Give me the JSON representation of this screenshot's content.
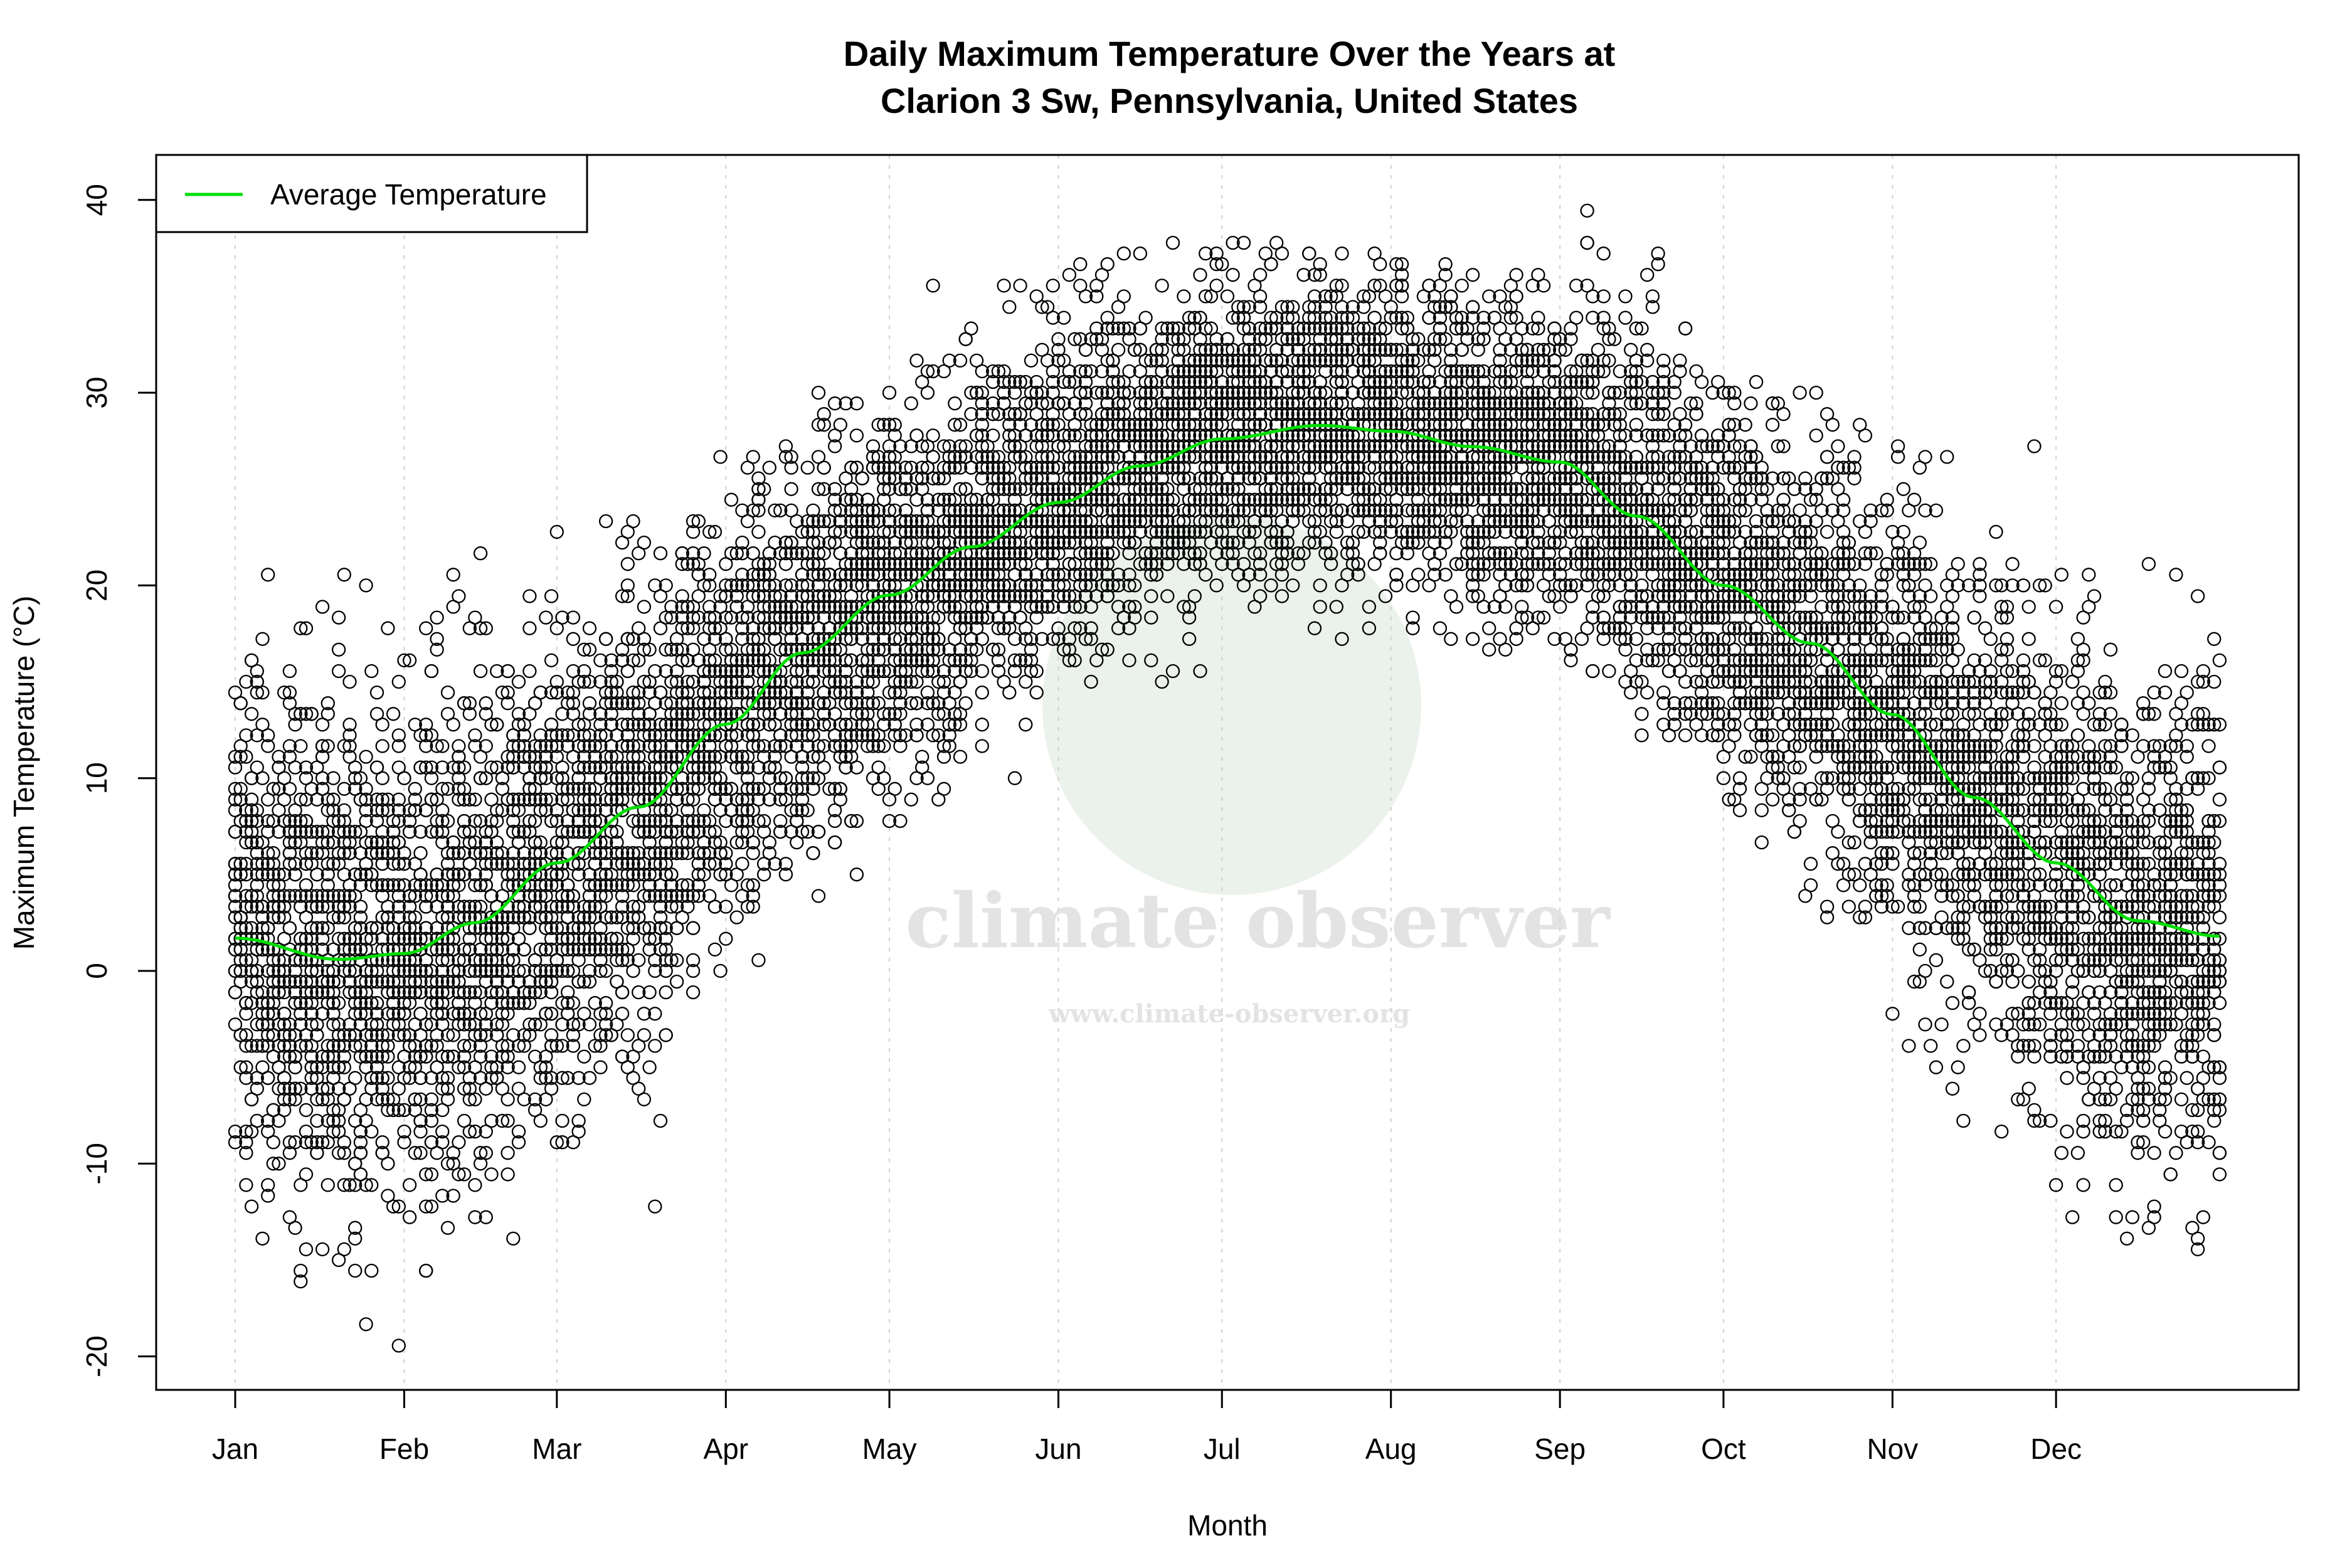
{
  "chart_data": {
    "type": "scatter",
    "title_line1": "Daily Maximum Temperature Over the Years at",
    "title_line2": "Clarion 3 Sw, Pennsylvania, United States",
    "xlabel": "Month",
    "ylabel": "Maximum Temperature (°C)",
    "ylim": [
      -21.5,
      42.5
    ],
    "yticks": [
      -20,
      -10,
      0,
      10,
      20,
      30,
      40
    ],
    "xticks": [
      {
        "label": "Jan",
        "day": 1
      },
      {
        "label": "Feb",
        "day": 32
      },
      {
        "label": "Mar",
        "day": 60
      },
      {
        "label": "Apr",
        "day": 91
      },
      {
        "label": "May",
        "day": 121
      },
      {
        "label": "Jun",
        "day": 152
      },
      {
        "label": "Jul",
        "day": 182
      },
      {
        "label": "Aug",
        "day": 213
      },
      {
        "label": "Sep",
        "day": 244
      },
      {
        "label": "Oct",
        "day": 274
      },
      {
        "label": "Nov",
        "day": 305
      },
      {
        "label": "Dec",
        "day": 335
      }
    ],
    "grid": "vertical dotted at month starts",
    "legend": {
      "placement": "top-left",
      "entries": [
        {
          "label": "Average Temperature",
          "color": "#00dd00"
        }
      ]
    },
    "point_color": "#000000",
    "average_curve": {
      "name": "Average Temperature",
      "color": "#00dd00",
      "day": [
        1,
        20,
        32,
        45,
        60,
        75,
        91,
        105,
        121,
        136,
        152,
        167,
        182,
        200,
        213,
        228,
        244,
        258,
        274,
        290,
        305,
        320,
        335,
        350,
        365
      ],
      "temp": [
        1.7,
        0.6,
        0.9,
        2.5,
        5.6,
        8.5,
        12.8,
        16.5,
        19.5,
        22.0,
        24.3,
        26.2,
        27.6,
        28.3,
        28.0,
        27.2,
        26.4,
        23.6,
        20.0,
        17.0,
        13.3,
        9.0,
        5.6,
        2.6,
        1.8
      ]
    },
    "monthly_range": {
      "months": [
        "Jan",
        "Feb",
        "Mar",
        "Apr",
        "May",
        "Jun",
        "Jul",
        "Aug",
        "Sep",
        "Oct",
        "Nov",
        "Dec"
      ],
      "max": [
        20.6,
        22.2,
        28.9,
        30.0,
        36.1,
        38.3,
        38.3,
        36.7,
        40.0,
        30.6,
        27.8,
        21.7
      ],
      "min": [
        -19.4,
        -15.6,
        -12.8,
        -5.6,
        1.1,
        7.2,
        15.6,
        16.7,
        12.2,
        2.8,
        -8.3,
        -14.4
      ]
    }
  },
  "watermark": {
    "brand": "climate observer",
    "url": "www.climate-observer.org",
    "color": "#dfe8df"
  }
}
